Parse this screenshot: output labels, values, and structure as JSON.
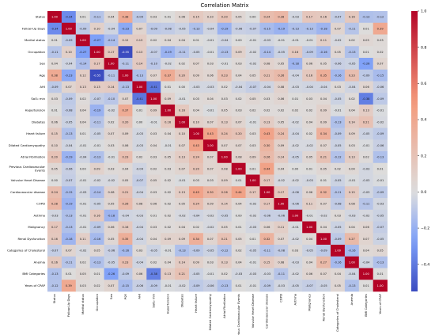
{
  "chart_data": {
    "type": "heatmap",
    "title": "Correlation Matrix",
    "labels": [
      "Status",
      "Follow-Up Days",
      "Marital status",
      "Occupation",
      "Sex",
      "Age",
      "AHI",
      "SaO₂ min",
      "Hypertension",
      "Diabetes",
      "Heart failure",
      "Dilated Cardiomyopathy",
      "Atrial Fibrillation",
      "Previous Cardiovascular Events",
      "Valvular Heart Disease",
      "Cardiovascular disease",
      "COPD",
      "Asthma",
      "Malignancy",
      "Renal Dysfunction",
      "Categories of Cholesterol",
      "Anemia",
      "BMI Categories",
      "Years of CPAP"
    ],
    "x_tick_labels": [
      "Status",
      "Follow-Up Days",
      "Marital status",
      "Occupation",
      "Sex",
      "Age",
      "AHI",
      "SaO₂ min",
      "Hypertension",
      "Diabetes",
      "Heart failure",
      "Dilated Cardiomyopathy",
      "Atrial Fibrillation",
      "Previous Cardiovascular Events",
      "Valvular Heart Disease",
      "Cardiovascular disease",
      "COPD",
      "Asthma",
      "Malignancy",
      "Renal Dysfunction",
      "Categories of Cholesterol",
      "Anemia",
      "BMI Categories",
      "Years of CPAP"
    ],
    "y_tick_labels": [
      [
        "Status"
      ],
      [
        "Follow-Up Days"
      ],
      [
        "Marital status"
      ],
      [
        "Occupation"
      ],
      [
        "Sex"
      ],
      [
        "Age"
      ],
      [
        "AHI"
      ],
      [
        "SaO₂ min"
      ],
      [
        "Hypertension"
      ],
      [
        "Diabetes"
      ],
      [
        "Heart failure"
      ],
      [
        "Dilated Cardiomyopathy"
      ],
      [
        "Atrial Fibrillation"
      ],
      [
        "Previous Cardiovascular",
        "Events"
      ],
      [
        "Valvular Heart Disease"
      ],
      [
        "Cardiovascular disease"
      ],
      [
        "COPD"
      ],
      [
        "Asthma"
      ],
      [
        "Malignancy"
      ],
      [
        "Renal Dysfunction"
      ],
      [
        "Categories of Cholesterol"
      ],
      [
        "Anemia"
      ],
      [
        "BMI Categories"
      ],
      [
        "Years of CPAP"
      ]
    ],
    "matrix": [
      [
        1.0,
        -0.34,
        0.01,
        -0.11,
        0.04,
        0.38,
        -0.09,
        0.03,
        0.01,
        0.06,
        0.15,
        0.1,
        0.2,
        0.05,
        0.0,
        0.24,
        0.28,
        -0.03,
        0.17,
        0.16,
        -0.07,
        0.16,
        -0.13,
        -0.12
      ],
      [
        -0.34,
        1.0,
        -0.09,
        0.1,
        -0.04,
        -0.23,
        0.07,
        -0.09,
        -0.08,
        -0.05,
        -0.13,
        -0.04,
        -0.19,
        -0.06,
        -0.07,
        -0.15,
        -0.19,
        -0.13,
        -0.13,
        -0.18,
        0.07,
        -0.11,
        0.01,
        0.39
      ],
      [
        0.01,
        -0.09,
        1.0,
        -0.27,
        -0.14,
        0.12,
        0.13,
        0.02,
        0.04,
        0.04,
        0.01,
        -0.01,
        -0.04,
        0.0,
        -0.01,
        -0.03,
        -0.01,
        -0.01,
        -0.01,
        0.11,
        -0.02,
        0.02,
        0.05,
        0.03
      ],
      [
        -0.11,
        0.1,
        -0.27,
        1.0,
        0.17,
        -0.55,
        0.13,
        -0.07,
        -0.19,
        -0.11,
        -0.05,
        -0.01,
        -0.13,
        0.09,
        -0.02,
        -0.14,
        -0.05,
        0.16,
        -0.09,
        -0.16,
        0.05,
        -0.13,
        0.01,
        0.02
      ],
      [
        0.04,
        -0.04,
        -0.14,
        0.17,
        1.0,
        -0.11,
        0.14,
        -0.1,
        -0.02,
        0.02,
        0.07,
        0.03,
        -0.01,
        0.03,
        -0.02,
        0.08,
        0.05,
        -0.18,
        0.06,
        0.05,
        -0.06,
        -0.05,
        -0.26,
        0.07
      ],
      [
        0.38,
        -0.23,
        0.12,
        -0.55,
        -0.11,
        1.0,
        -0.13,
        0.07,
        0.37,
        0.2,
        0.09,
        0.06,
        0.23,
        0.04,
        0.05,
        0.21,
        0.26,
        -0.04,
        0.16,
        0.35,
        -0.16,
        0.23,
        -0.09,
        -0.15
      ],
      [
        -0.09,
        0.07,
        0.13,
        0.13,
        0.14,
        -0.13,
        1.0,
        -0.41,
        0.01,
        0.0,
        -0.03,
        -0.03,
        0.02,
        -0.04,
        -0.07,
        -0.04,
        0.08,
        -0.03,
        -0.04,
        -0.04,
        0.03,
        -0.04,
        0.06,
        -0.06
      ],
      [
        0.03,
        -0.09,
        0.02,
        -0.07,
        -0.1,
        0.07,
        -0.41,
        1.0,
        0.09,
        -0.01,
        0.03,
        0.04,
        0.03,
        0.02,
        0.05,
        0.03,
        0.06,
        0.01,
        0.03,
        0.04,
        -0.05,
        0.02,
        -0.38,
        -0.09
      ],
      [
        0.01,
        -0.08,
        0.04,
        -0.19,
        -0.02,
        0.37,
        0.01,
        0.09,
        1.0,
        0.16,
        0.04,
        -0.01,
        0.05,
        0.03,
        0.02,
        0.02,
        0.02,
        0.02,
        0.02,
        0.09,
        -0.01,
        0.04,
        0.13,
        -0.01
      ],
      [
        0.06,
        -0.05,
        0.04,
        -0.11,
        0.02,
        0.2,
        0.0,
        -0.01,
        0.16,
        1.0,
        0.1,
        0.07,
        0.13,
        0.07,
        -0.01,
        0.13,
        0.05,
        -0.02,
        0.04,
        0.09,
        -0.13,
        0.14,
        0.21,
        -0.02
      ],
      [
        0.15,
        -0.13,
        0.01,
        -0.05,
        0.07,
        0.09,
        -0.03,
        0.03,
        0.04,
        0.1,
        1.0,
        0.43,
        0.24,
        0.2,
        0.03,
        0.43,
        0.24,
        -0.04,
        0.02,
        0.34,
        -0.09,
        0.09,
        -0.05,
        -0.09
      ],
      [
        0.1,
        -0.04,
        -0.01,
        -0.01,
        0.03,
        0.06,
        -0.03,
        0.04,
        -0.01,
        0.07,
        0.43,
        1.0,
        0.07,
        0.07,
        0.03,
        0.3,
        0.09,
        -0.02,
        -0.02,
        0.07,
        -0.05,
        0.03,
        -0.01,
        -0.06
      ],
      [
        0.2,
        -0.19,
        -0.04,
        -0.13,
        -0.01,
        0.23,
        0.02,
        0.03,
        0.05,
        0.13,
        0.24,
        0.07,
        1.0,
        0.08,
        0.09,
        0.26,
        0.14,
        -0.05,
        0.05,
        0.21,
        -0.12,
        0.13,
        0.02,
        -0.13
      ],
      [
        0.05,
        -0.06,
        0.0,
        0.09,
        0.03,
        0.04,
        -0.04,
        0.02,
        0.03,
        0.07,
        0.2,
        0.07,
        0.08,
        1.0,
        0.01,
        0.44,
        0.04,
        0.0,
        0.01,
        0.05,
        0.02,
        0.04,
        -0.03,
        0.01
      ],
      [
        0.0,
        -0.07,
        -0.01,
        -0.02,
        -0.02,
        0.05,
        -0.07,
        0.05,
        0.02,
        -0.01,
        0.03,
        0.03,
        0.09,
        0.01,
        1.0,
        0.17,
        -0.02,
        -0.02,
        -0.03,
        0.01,
        -0.05,
        -0.01,
        -0.03,
        -0.01
      ],
      [
        0.24,
        -0.15,
        -0.03,
        -0.14,
        0.08,
        0.21,
        -0.04,
        0.03,
        0.02,
        0.13,
        0.43,
        0.3,
        0.26,
        0.44,
        0.17,
        1.0,
        0.17,
        -0.06,
        0.06,
        0.32,
        -0.11,
        0.15,
        -0.03,
        -0.09
      ],
      [
        0.28,
        -0.19,
        -0.01,
        -0.05,
        0.05,
        0.26,
        0.08,
        0.06,
        0.02,
        0.05,
        0.24,
        0.09,
        0.14,
        0.04,
        -0.02,
        0.17,
        1.0,
        -0.06,
        0.11,
        0.07,
        -0.08,
        0.08,
        -0.11,
        -0.03
      ],
      [
        -0.03,
        -0.13,
        -0.01,
        0.16,
        -0.18,
        -0.04,
        -0.03,
        0.01,
        0.02,
        -0.02,
        -0.04,
        -0.02,
        -0.05,
        0.0,
        -0.02,
        -0.06,
        -0.06,
        1.0,
        -0.01,
        -0.02,
        0.03,
        -0.03,
        -0.02,
        -0.05
      ],
      [
        0.17,
        -0.13,
        -0.01,
        -0.09,
        0.06,
        0.16,
        -0.04,
        0.03,
        0.02,
        0.04,
        0.02,
        -0.02,
        0.05,
        0.01,
        -0.03,
        0.06,
        0.11,
        -0.01,
        1.0,
        0.04,
        -0.05,
        0.04,
        0.06,
        -0.07
      ],
      [
        0.16,
        -0.18,
        0.11,
        -0.16,
        0.05,
        0.35,
        -0.04,
        0.04,
        0.09,
        0.09,
        0.34,
        0.07,
        0.21,
        0.05,
        0.01,
        0.32,
        0.07,
        -0.02,
        0.04,
        1.0,
        -0.09,
        0.27,
        0.07,
        -0.05
      ],
      [
        -0.07,
        0.07,
        -0.02,
        0.05,
        -0.06,
        -0.16,
        0.03,
        -0.05,
        -0.01,
        -0.13,
        -0.09,
        -0.05,
        -0.12,
        0.02,
        -0.05,
        -0.11,
        -0.08,
        0.03,
        -0.05,
        -0.09,
        1.0,
        -0.16,
        0.04,
        0.05
      ],
      [
        0.16,
        -0.11,
        0.02,
        -0.13,
        -0.05,
        0.23,
        -0.04,
        0.02,
        0.04,
        0.14,
        0.09,
        0.03,
        0.13,
        0.04,
        -0.01,
        0.15,
        0.08,
        -0.03,
        0.04,
        0.27,
        -0.16,
        1.0,
        -0.04,
        -0.13
      ],
      [
        -0.13,
        0.01,
        0.05,
        0.01,
        -0.26,
        -0.09,
        0.06,
        -0.38,
        0.13,
        0.21,
        -0.05,
        -0.01,
        0.02,
        -0.03,
        -0.03,
        -0.03,
        -0.11,
        -0.02,
        0.06,
        0.07,
        0.04,
        -0.04,
        1.0,
        0.01
      ],
      [
        -0.12,
        0.39,
        0.03,
        0.02,
        0.07,
        -0.15,
        -0.06,
        -0.09,
        -0.01,
        -0.02,
        -0.09,
        -0.06,
        -0.13,
        0.01,
        -0.01,
        -0.09,
        -0.03,
        -0.05,
        -0.07,
        -0.05,
        0.05,
        -0.13,
        0.01,
        1.0
      ]
    ],
    "colorscale": "coolwarm",
    "colorbar": {
      "range": [
        -0.55,
        1.0
      ],
      "ticks": [
        1.0,
        0.8,
        0.6,
        0.4,
        0.2,
        0.0,
        -0.2,
        -0.4
      ],
      "tick_labels": [
        "1.0",
        "0.8",
        "0.6",
        "0.4",
        "0.2",
        "0.0",
        "−0.2",
        "−0.4"
      ]
    },
    "annotations": "cell values shown with two decimals",
    "grid": false
  }
}
